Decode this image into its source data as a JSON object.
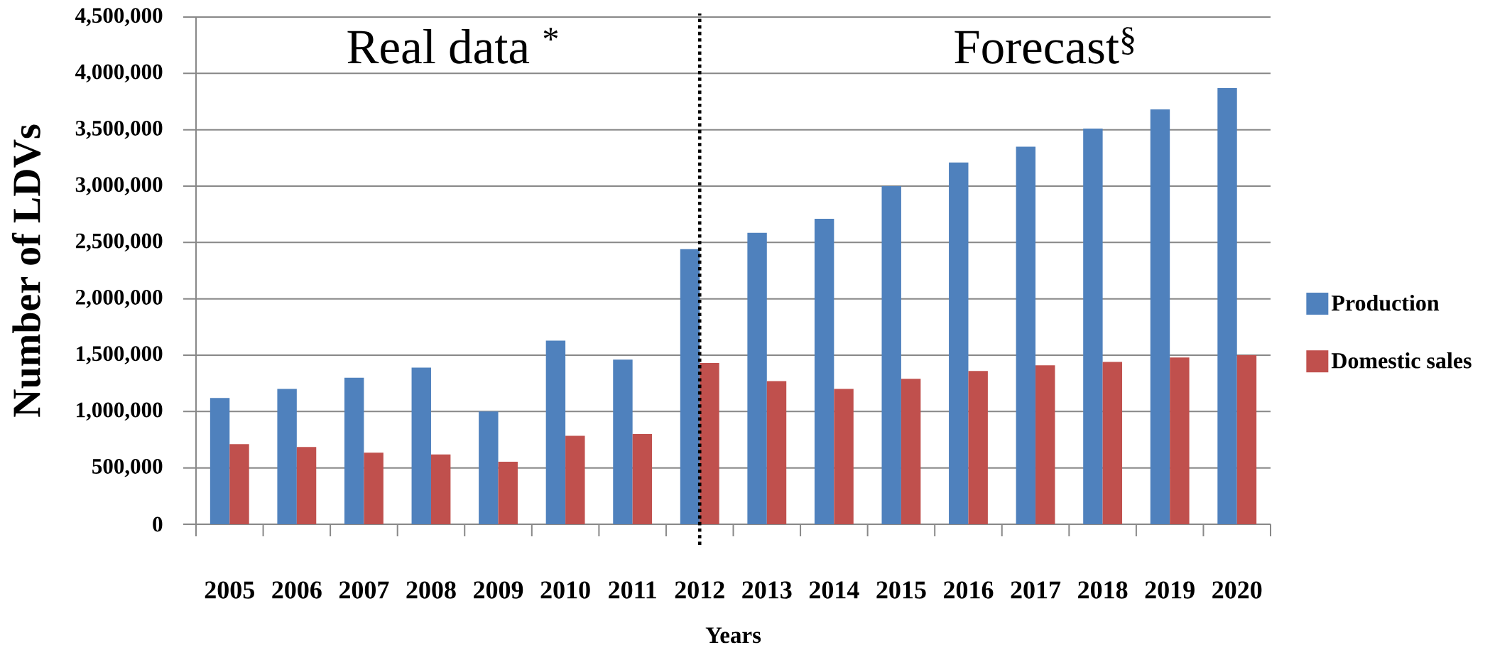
{
  "chart_data": {
    "type": "bar",
    "xlabel": "Years",
    "ylabel": "Number of LDVs",
    "annotations": [
      "Real data $^{*}$",
      "Forecast$^{§}$"
    ],
    "categories": [
      "2005",
      "2006",
      "2007",
      "2008",
      "2009",
      "2010",
      "2011",
      "2012",
      "2013",
      "2014",
      "2015",
      "2016",
      "2017",
      "2018",
      "2019",
      "2020"
    ],
    "series": [
      {
        "name": "Production",
        "color": "#4f81bd",
        "values": [
          1120000,
          1200000,
          1300000,
          1390000,
          1000000,
          1630000,
          1460000,
          2440000,
          2585000,
          2710000,
          3000000,
          3210000,
          3350000,
          3510000,
          3680000,
          3870000
        ]
      },
      {
        "name": "Domestic sales",
        "color": "#c0504d",
        "values": [
          710000,
          685000,
          635000,
          620000,
          555000,
          785000,
          800000,
          1430000,
          1270000,
          1200000,
          1290000,
          1360000,
          1410000,
          1440000,
          1480000,
          1500000
        ]
      }
    ],
    "ylim": [
      0,
      4500000
    ],
    "yticks": [
      0,
      {
        "value": 500000,
        "label": "500,000"
      },
      {
        "value": 1000000,
        "label": "1,000,000"
      },
      {
        "value": 1500000,
        "label": "1,500,000"
      },
      {
        "value": 2000000,
        "label": "2,000,000"
      },
      {
        "value": 2500000,
        "label": "2,500,000"
      },
      {
        "value": 3000000,
        "label": "3,000,000"
      },
      {
        "value": 3500000,
        "label": "3,500,000"
      },
      {
        "value": 4000000,
        "label": "4,000,000"
      },
      {
        "value": 4500000,
        "label": "4,500,000"
      }
    ],
    "grid": "y",
    "legend": "right",
    "ref_lines": [
      {
        "axis": "x",
        "value": "2012",
        "color": "#000000",
        "line_style": "dotted"
      }
    ]
  }
}
